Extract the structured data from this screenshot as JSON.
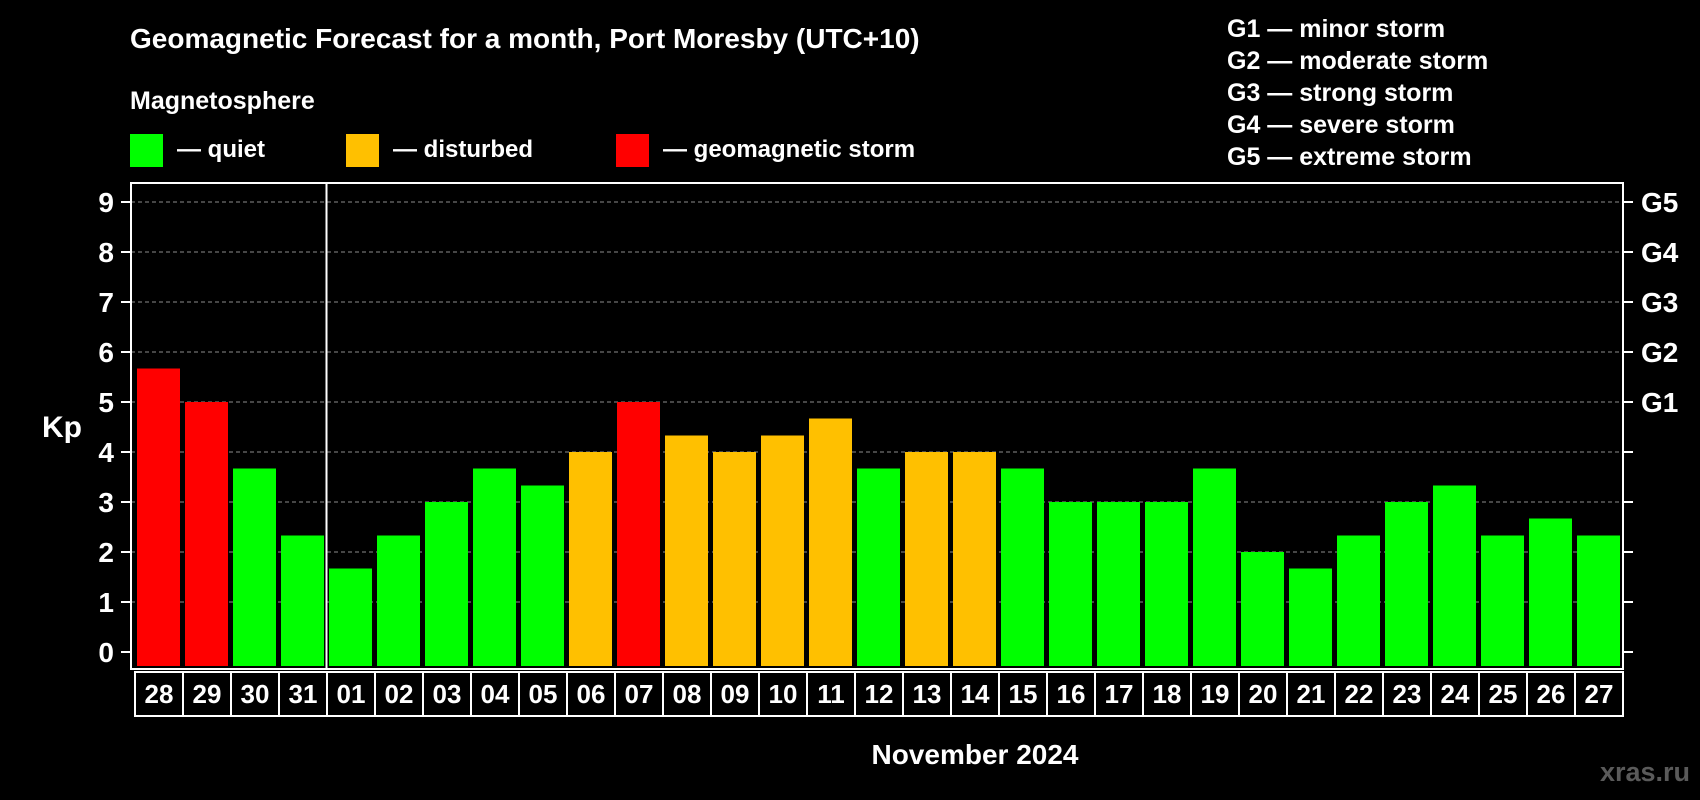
{
  "chart_data": {
    "type": "bar",
    "title": "Geomagnetic Forecast for a month, Port Moresby (UTC+10)",
    "legend": {
      "heading": "Magnetosphere",
      "items": [
        {
          "key": "quiet",
          "label": "— quiet",
          "color": "#00ff00"
        },
        {
          "key": "disturbed",
          "label": "— disturbed",
          "color": "#ffc000"
        },
        {
          "key": "storm",
          "label": "— geomagnetic storm",
          "color": "#ff0000"
        }
      ]
    },
    "storm_scale": [
      "G1 — minor storm",
      "G2 — moderate storm",
      "G3 — strong storm",
      "G4 — severe storm",
      "G5 — extreme storm"
    ],
    "ylabel": "Kp",
    "ylim": [
      0,
      9
    ],
    "yticks": [
      0,
      1,
      2,
      3,
      4,
      5,
      6,
      7,
      8,
      9
    ],
    "g_levels": [
      {
        "label": "G1",
        "kp": 5
      },
      {
        "label": "G2",
        "kp": 6
      },
      {
        "label": "G3",
        "kp": 7
      },
      {
        "label": "G4",
        "kp": 8
      },
      {
        "label": "G5",
        "kp": 9
      }
    ],
    "xlabel": "November 2024",
    "month_divider_after_index": 3,
    "categories": [
      "28",
      "29",
      "30",
      "31",
      "01",
      "02",
      "03",
      "04",
      "05",
      "06",
      "07",
      "08",
      "09",
      "10",
      "11",
      "12",
      "13",
      "14",
      "15",
      "16",
      "17",
      "18",
      "19",
      "20",
      "21",
      "22",
      "23",
      "24",
      "25",
      "26",
      "27"
    ],
    "values": [
      5.67,
      5,
      3.67,
      2.33,
      1.67,
      2.33,
      3,
      3.67,
      3.33,
      4,
      5,
      4.33,
      4,
      4.33,
      4.67,
      3.67,
      4,
      4,
      3.67,
      3,
      3,
      3,
      3.67,
      2,
      1.67,
      2.33,
      3,
      3.33,
      2.33,
      2.67,
      2.33
    ],
    "levels": [
      "storm",
      "storm",
      "quiet",
      "quiet",
      "quiet",
      "quiet",
      "quiet",
      "quiet",
      "quiet",
      "disturbed",
      "storm",
      "disturbed",
      "disturbed",
      "disturbed",
      "disturbed",
      "quiet",
      "disturbed",
      "disturbed",
      "quiet",
      "quiet",
      "quiet",
      "quiet",
      "quiet",
      "quiet",
      "quiet",
      "quiet",
      "quiet",
      "quiet",
      "quiet",
      "quiet",
      "quiet"
    ],
    "grid": true
  },
  "watermark": "xras.ru"
}
